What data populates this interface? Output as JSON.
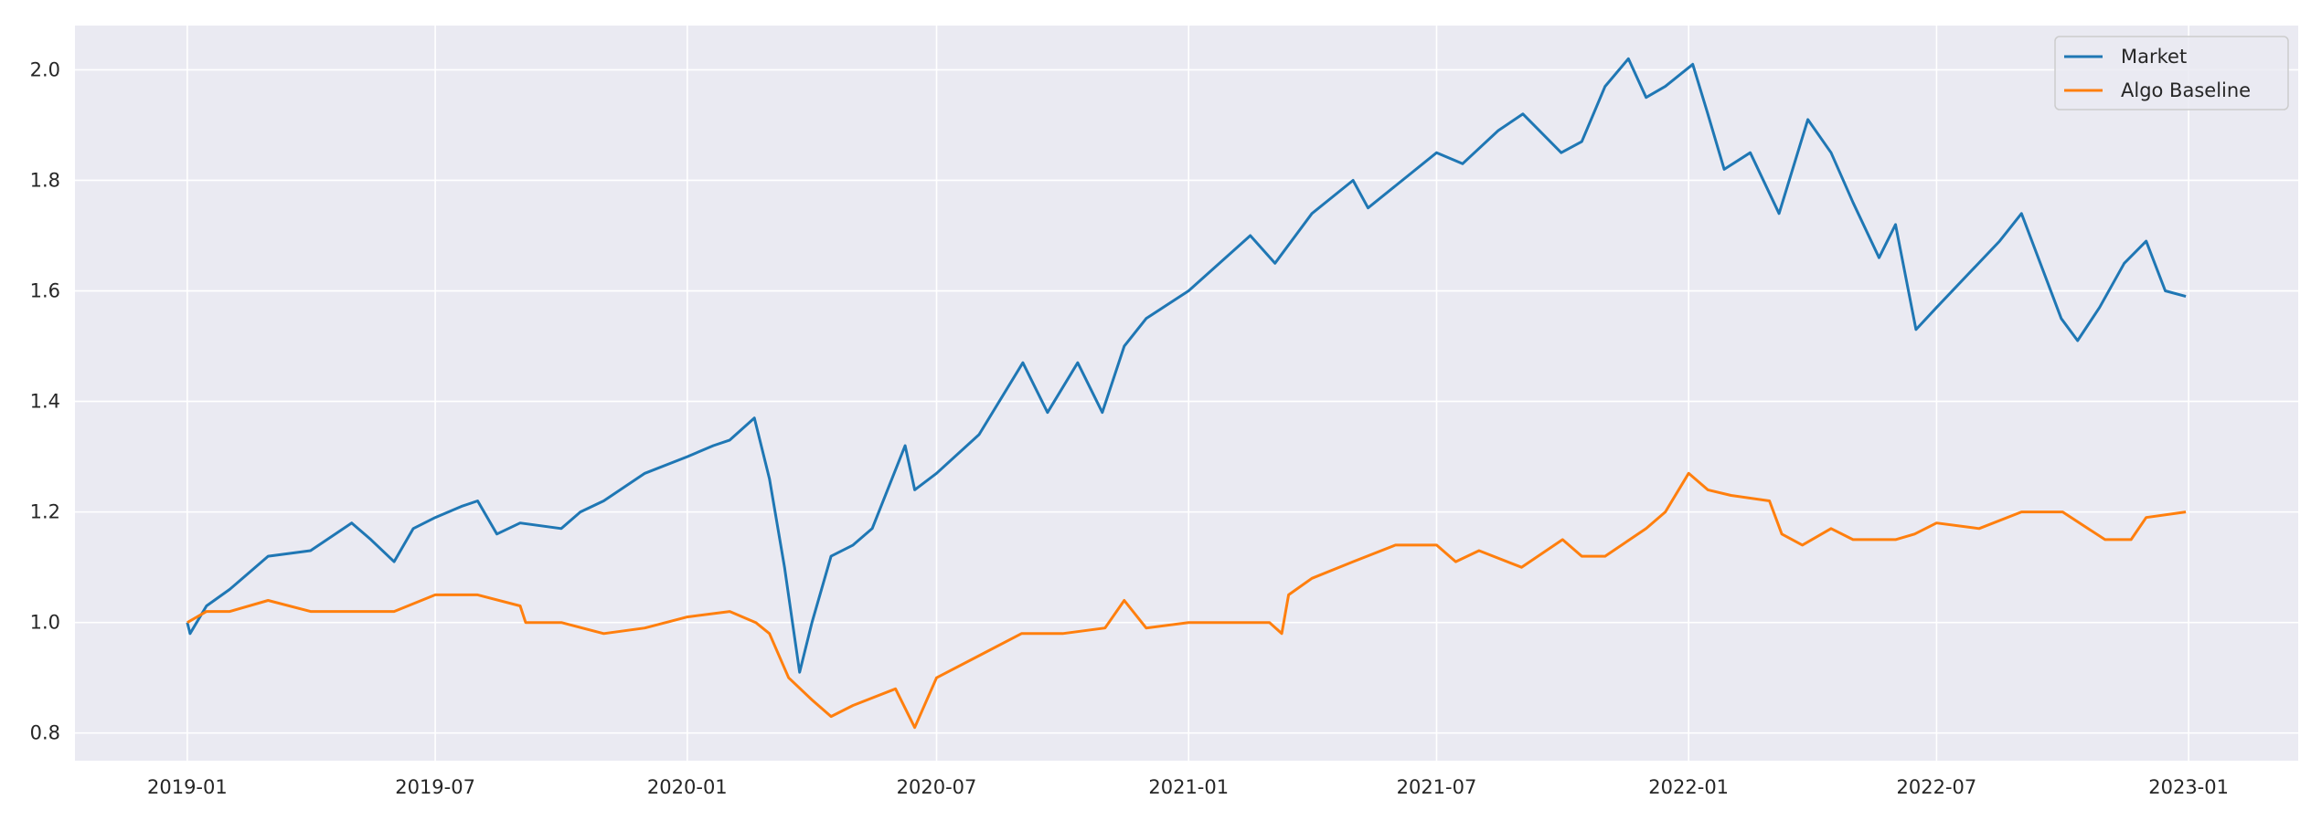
{
  "chart_data": {
    "type": "line",
    "title": "",
    "xlabel": "",
    "ylabel": "",
    "x_range": [
      "2018-10-11",
      "2023-03-22"
    ],
    "ylim": [
      0.75,
      2.08
    ],
    "grid": true,
    "legend_position": "top-right",
    "x_ticks": [
      "2019-01",
      "2019-07",
      "2020-01",
      "2020-07",
      "2021-01",
      "2021-07",
      "2022-01",
      "2022-07",
      "2023-01"
    ],
    "y_ticks": [
      0.8,
      1.0,
      1.2,
      1.4,
      1.6,
      1.8,
      2.0
    ],
    "series": [
      {
        "name": "Market",
        "color": "#1f77b4",
        "points": [
          [
            "2019-01-01",
            1.0
          ],
          [
            "2019-01-03",
            0.98
          ],
          [
            "2019-01-15",
            1.03
          ],
          [
            "2019-02-01",
            1.06
          ],
          [
            "2019-03-01",
            1.12
          ],
          [
            "2019-04-01",
            1.13
          ],
          [
            "2019-05-01",
            1.18
          ],
          [
            "2019-05-15",
            1.15
          ],
          [
            "2019-06-01",
            1.11
          ],
          [
            "2019-06-15",
            1.17
          ],
          [
            "2019-07-01",
            1.19
          ],
          [
            "2019-07-20",
            1.21
          ],
          [
            "2019-08-01",
            1.22
          ],
          [
            "2019-08-15",
            1.16
          ],
          [
            "2019-09-01",
            1.18
          ],
          [
            "2019-10-01",
            1.17
          ],
          [
            "2019-10-15",
            1.2
          ],
          [
            "2019-11-01",
            1.22
          ],
          [
            "2019-12-01",
            1.27
          ],
          [
            "2020-01-01",
            1.3
          ],
          [
            "2020-01-20",
            1.32
          ],
          [
            "2020-02-01",
            1.33
          ],
          [
            "2020-02-19",
            1.37
          ],
          [
            "2020-03-01",
            1.26
          ],
          [
            "2020-03-12",
            1.1
          ],
          [
            "2020-03-23",
            0.91
          ],
          [
            "2020-04-01",
            1.0
          ],
          [
            "2020-04-15",
            1.12
          ],
          [
            "2020-05-01",
            1.14
          ],
          [
            "2020-05-15",
            1.17
          ],
          [
            "2020-06-08",
            1.32
          ],
          [
            "2020-06-15",
            1.24
          ],
          [
            "2020-07-01",
            1.27
          ],
          [
            "2020-08-01",
            1.34
          ],
          [
            "2020-09-02",
            1.47
          ],
          [
            "2020-09-20",
            1.38
          ],
          [
            "2020-10-12",
            1.47
          ],
          [
            "2020-10-30",
            1.38
          ],
          [
            "2020-11-15",
            1.5
          ],
          [
            "2020-12-01",
            1.55
          ],
          [
            "2021-01-01",
            1.6
          ],
          [
            "2021-02-15",
            1.7
          ],
          [
            "2021-03-05",
            1.65
          ],
          [
            "2021-04-01",
            1.74
          ],
          [
            "2021-05-01",
            1.8
          ],
          [
            "2021-05-12",
            1.75
          ],
          [
            "2021-06-01",
            1.79
          ],
          [
            "2021-07-01",
            1.85
          ],
          [
            "2021-07-20",
            1.83
          ],
          [
            "2021-08-15",
            1.89
          ],
          [
            "2021-09-02",
            1.92
          ],
          [
            "2021-09-30",
            1.85
          ],
          [
            "2021-10-15",
            1.87
          ],
          [
            "2021-11-01",
            1.97
          ],
          [
            "2021-11-18",
            2.02
          ],
          [
            "2021-12-01",
            1.95
          ],
          [
            "2021-12-15",
            1.97
          ],
          [
            "2022-01-04",
            2.01
          ],
          [
            "2022-01-15",
            1.92
          ],
          [
            "2022-01-27",
            1.82
          ],
          [
            "2022-02-15",
            1.85
          ],
          [
            "2022-03-08",
            1.74
          ],
          [
            "2022-03-29",
            1.91
          ],
          [
            "2022-04-15",
            1.85
          ],
          [
            "2022-05-01",
            1.76
          ],
          [
            "2022-05-20",
            1.66
          ],
          [
            "2022-06-01",
            1.72
          ],
          [
            "2022-06-16",
            1.53
          ],
          [
            "2022-07-01",
            1.57
          ],
          [
            "2022-08-16",
            1.69
          ],
          [
            "2022-09-01",
            1.74
          ],
          [
            "2022-09-30",
            1.55
          ],
          [
            "2022-10-12",
            1.51
          ],
          [
            "2022-10-28",
            1.57
          ],
          [
            "2022-11-15",
            1.65
          ],
          [
            "2022-12-01",
            1.69
          ],
          [
            "2022-12-15",
            1.6
          ],
          [
            "2022-12-30",
            1.59
          ]
        ]
      },
      {
        "name": "Algo Baseline",
        "color": "#ff7f0e",
        "points": [
          [
            "2019-01-01",
            1.0
          ],
          [
            "2019-01-15",
            1.02
          ],
          [
            "2019-02-01",
            1.02
          ],
          [
            "2019-03-01",
            1.04
          ],
          [
            "2019-04-01",
            1.02
          ],
          [
            "2019-05-01",
            1.02
          ],
          [
            "2019-06-01",
            1.02
          ],
          [
            "2019-07-01",
            1.05
          ],
          [
            "2019-08-01",
            1.05
          ],
          [
            "2019-09-01",
            1.03
          ],
          [
            "2019-09-05",
            1.0
          ],
          [
            "2019-10-01",
            1.0
          ],
          [
            "2019-11-01",
            0.98
          ],
          [
            "2019-12-01",
            0.99
          ],
          [
            "2020-01-01",
            1.01
          ],
          [
            "2020-02-01",
            1.02
          ],
          [
            "2020-02-20",
            1.0
          ],
          [
            "2020-03-01",
            0.98
          ],
          [
            "2020-03-15",
            0.9
          ],
          [
            "2020-04-01",
            0.86
          ],
          [
            "2020-04-15",
            0.83
          ],
          [
            "2020-05-01",
            0.85
          ],
          [
            "2020-06-01",
            0.88
          ],
          [
            "2020-06-15",
            0.81
          ],
          [
            "2020-07-01",
            0.9
          ],
          [
            "2020-08-01",
            0.94
          ],
          [
            "2020-09-01",
            0.98
          ],
          [
            "2020-10-01",
            0.98
          ],
          [
            "2020-11-01",
            0.99
          ],
          [
            "2020-11-15",
            1.04
          ],
          [
            "2020-12-01",
            0.99
          ],
          [
            "2021-01-01",
            1.0
          ],
          [
            "2021-02-01",
            1.0
          ],
          [
            "2021-03-01",
            1.0
          ],
          [
            "2021-03-10",
            0.98
          ],
          [
            "2021-03-15",
            1.05
          ],
          [
            "2021-04-01",
            1.08
          ],
          [
            "2021-05-01",
            1.11
          ],
          [
            "2021-06-01",
            1.14
          ],
          [
            "2021-07-01",
            1.14
          ],
          [
            "2021-07-15",
            1.11
          ],
          [
            "2021-08-01",
            1.13
          ],
          [
            "2021-09-01",
            1.1
          ],
          [
            "2021-10-01",
            1.15
          ],
          [
            "2021-10-15",
            1.12
          ],
          [
            "2021-11-01",
            1.12
          ],
          [
            "2021-12-01",
            1.17
          ],
          [
            "2021-12-15",
            1.2
          ],
          [
            "2022-01-01",
            1.27
          ],
          [
            "2022-01-15",
            1.24
          ],
          [
            "2022-02-01",
            1.23
          ],
          [
            "2022-03-01",
            1.22
          ],
          [
            "2022-03-10",
            1.16
          ],
          [
            "2022-03-25",
            1.14
          ],
          [
            "2022-04-15",
            1.17
          ],
          [
            "2022-05-01",
            1.15
          ],
          [
            "2022-06-01",
            1.15
          ],
          [
            "2022-06-15",
            1.16
          ],
          [
            "2022-07-01",
            1.18
          ],
          [
            "2022-08-01",
            1.17
          ],
          [
            "2022-09-01",
            1.2
          ],
          [
            "2022-10-01",
            1.2
          ],
          [
            "2022-11-01",
            1.15
          ],
          [
            "2022-11-20",
            1.15
          ],
          [
            "2022-12-01",
            1.19
          ],
          [
            "2022-12-30",
            1.2
          ]
        ]
      }
    ]
  }
}
